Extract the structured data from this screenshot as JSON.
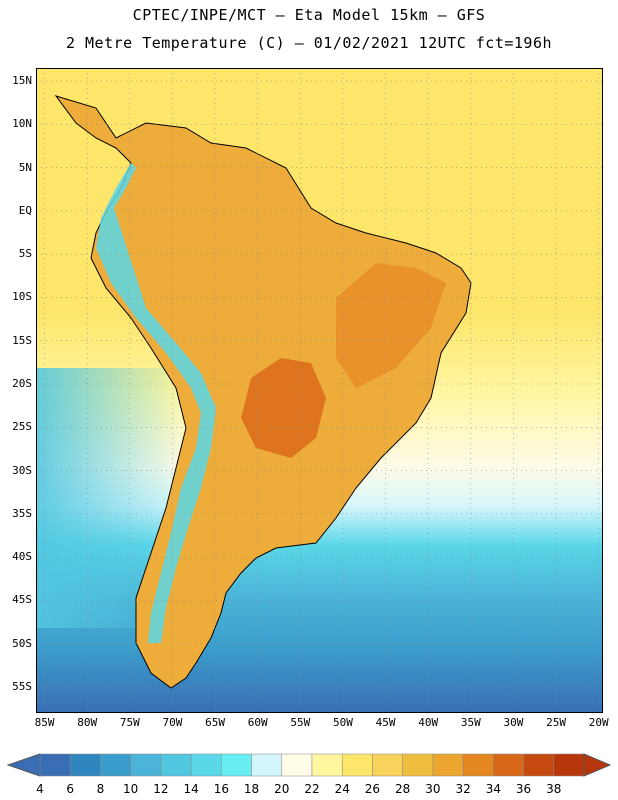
{
  "header": {
    "title_line1": "CPTEC/INPE/MCT –  Eta Model 15km – GFS",
    "title_line2": "2 Metre Temperature (C) – 01/02/2021 12UTC fct=196h"
  },
  "map": {
    "lat_labels": [
      "15N",
      "10N",
      "5N",
      "EQ",
      "5S",
      "10S",
      "15S",
      "20S",
      "25S",
      "30S",
      "35S",
      "40S",
      "45S",
      "50S",
      "55S"
    ],
    "lon_labels": [
      "85W",
      "80W",
      "75W",
      "70W",
      "65W",
      "60W",
      "55W",
      "50W",
      "45W",
      "40W",
      "35W",
      "30W",
      "25W",
      "20W"
    ],
    "lon_range": [
      -86,
      -19.5
    ],
    "lat_range": [
      16.5,
      -58
    ]
  },
  "colorbar": {
    "values": [
      "4",
      "6",
      "8",
      "10",
      "12",
      "14",
      "16",
      "18",
      "20",
      "22",
      "24",
      "26",
      "28",
      "30",
      "32",
      "34",
      "36",
      "38"
    ],
    "colors": [
      "#3a6eb4",
      "#2f86be",
      "#3b9dcc",
      "#4cb4d8",
      "#52c7e0",
      "#5ad7e8",
      "#66eef2",
      "#d4f6fb",
      "#fffce8",
      "#fff6a0",
      "#fde66a",
      "#f8d25a",
      "#f0be3e",
      "#eca630",
      "#e58822",
      "#d96818",
      "#c64a10",
      "#b8360c"
    ]
  }
}
